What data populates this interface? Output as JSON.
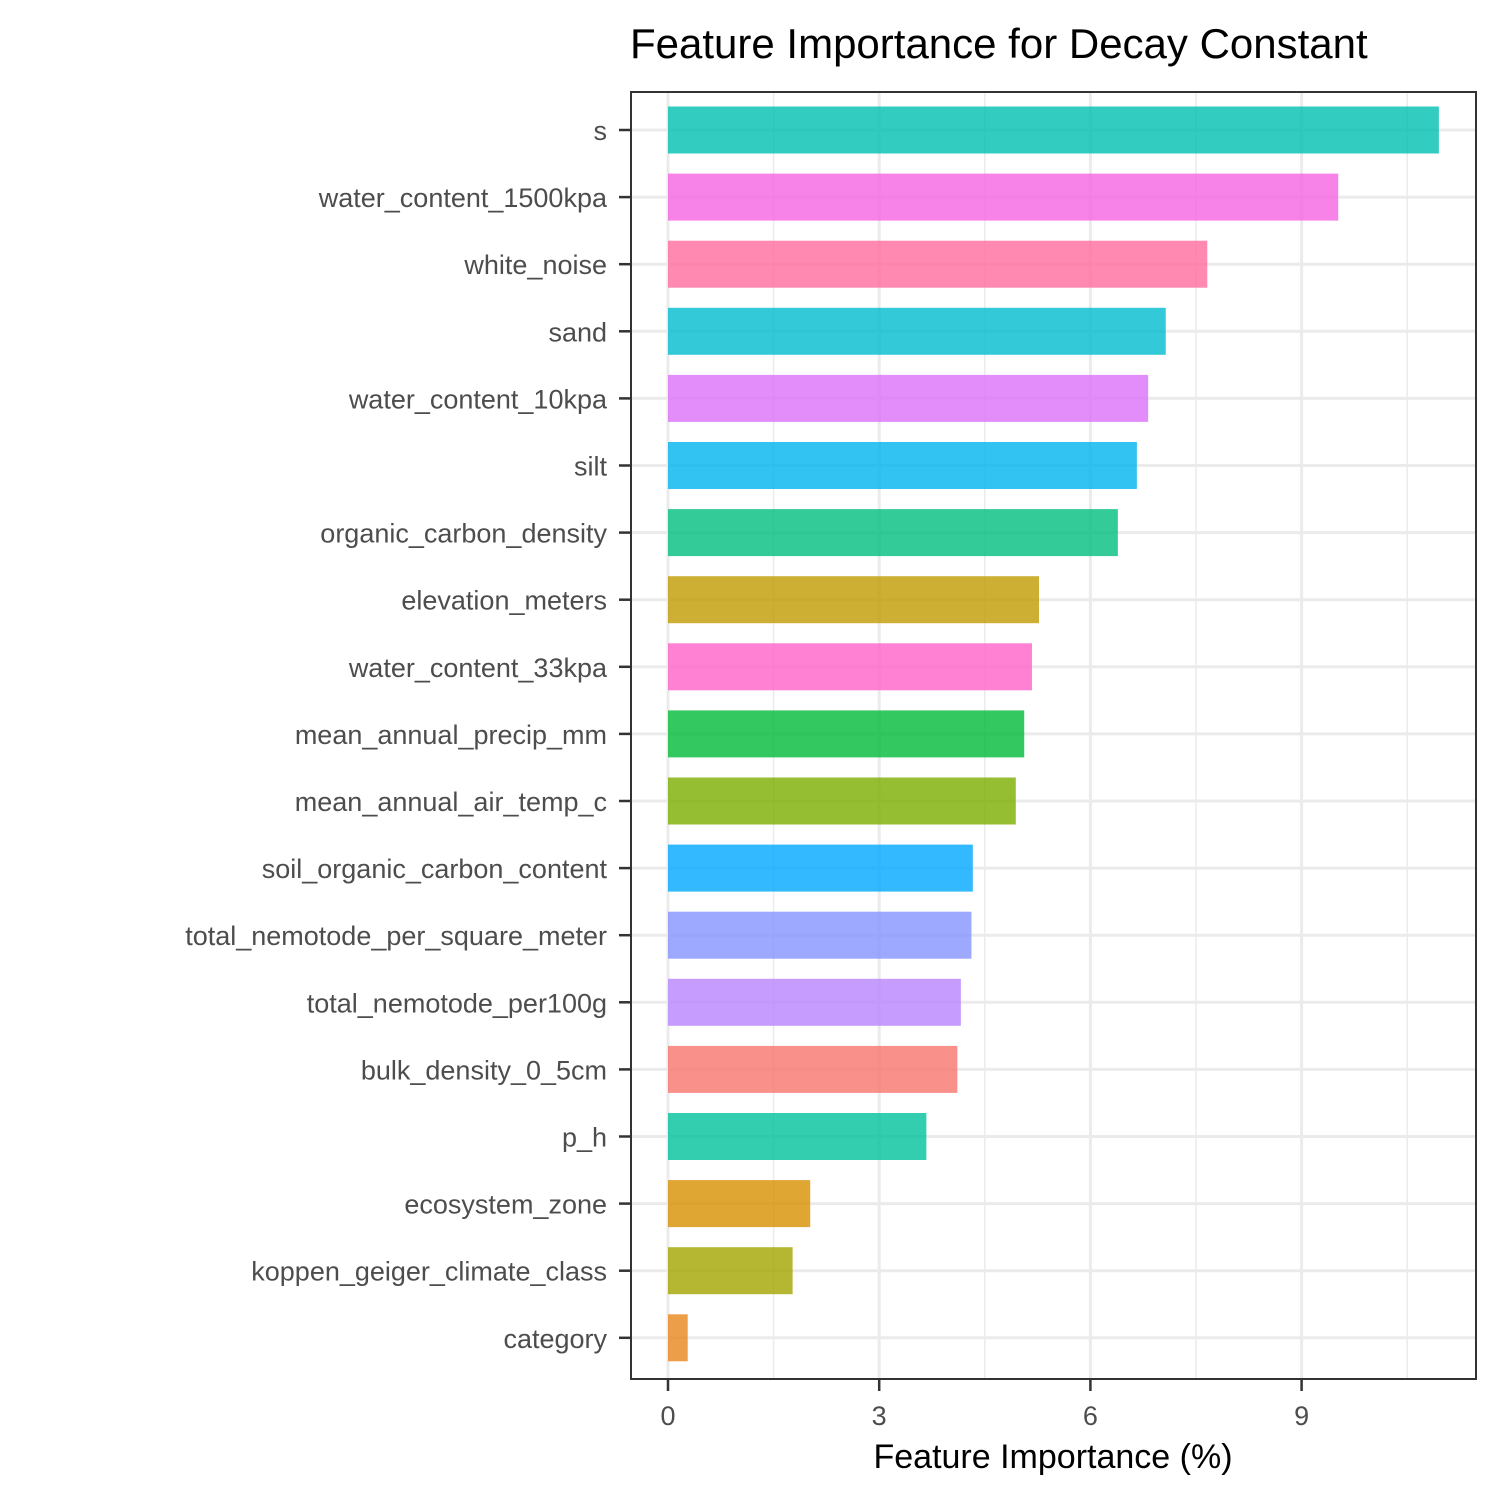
{
  "chart_data": {
    "type": "bar",
    "orientation": "horizontal",
    "title": "Feature Importance for Decay Constant",
    "xlabel": "Feature Importance (%)",
    "ylabel": "",
    "xlim": [
      -0.53,
      11.5
    ],
    "x_ticks": [
      0,
      3,
      6,
      9
    ],
    "grid": true,
    "legend": "none",
    "categories": [
      "s",
      "water_content_1500kpa",
      "white_noise",
      "sand",
      "water_content_10kpa",
      "silt",
      "organic_carbon_density",
      "elevation_meters",
      "water_content_33kpa",
      "mean_annual_precip_mm",
      "mean_annual_air_temp_c",
      "soil_organic_carbon_content",
      "total_nemotode_per_square_meter",
      "total_nemotode_per100g",
      "bulk_density_0_5cm",
      "p_h",
      "ecosystem_zone",
      "koppen_geiger_climate_class",
      "category"
    ],
    "values": [
      10.95,
      9.52,
      7.66,
      7.07,
      6.82,
      6.66,
      6.39,
      5.27,
      5.17,
      5.06,
      4.94,
      4.33,
      4.31,
      4.16,
      4.11,
      3.67,
      2.02,
      1.77,
      0.28
    ],
    "colors": [
      "#00BFB0",
      "#F564E3",
      "#FF6C9C",
      "#00BCD0",
      "#DC71FA",
      "#00B4EF",
      "#00BE7D",
      "#C09B00",
      "#FF61C9",
      "#00BA38",
      "#7CAE00",
      "#00A8FF",
      "#8494FF",
      "#B983FF",
      "#F8766D",
      "#00C19C",
      "#D89000",
      "#A3A500",
      "#E7861B"
    ]
  }
}
